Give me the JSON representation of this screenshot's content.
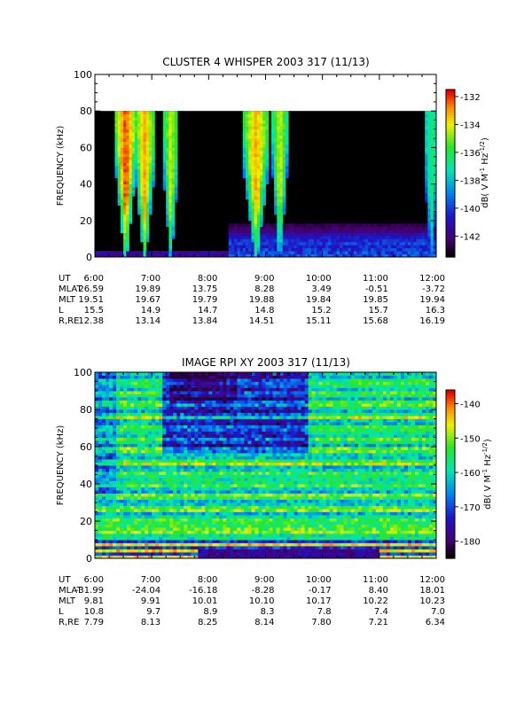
{
  "chart_data": [
    {
      "type": "heatmap",
      "title": "CLUSTER 4 WHISPER 2003 317 (11/13)",
      "ylabel": "FREQUENCY (kHz)",
      "ylim": [
        0,
        100
      ],
      "y_ticks": [
        "0",
        "20",
        "40",
        "60",
        "80",
        "100"
      ],
      "x_ticks": [
        "6:00",
        "7:00",
        "8:00",
        "9:00",
        "10:00",
        "11:00",
        "12:00"
      ],
      "data_max_frequency_khz": 80,
      "colorbar": {
        "label": "dB( V M",
        "label_sup1": "-1",
        "label_mid": " Hz",
        "label_sup2": "-1/2",
        "label_end": ")",
        "range": [
          -143.5,
          -131.5
        ],
        "ticks": [
          "-132",
          "-134",
          "-136",
          "-138",
          "-140",
          "-142"
        ]
      },
      "features": [
        {
          "t_start": "6:25",
          "t_end": "6:40",
          "f_top_khz": 80,
          "intensity_db": -133
        },
        {
          "t_start": "6:45",
          "t_end": "7:00",
          "f_top_khz": 80,
          "intensity_db": -134
        },
        {
          "t_start": "7:15",
          "t_end": "7:25",
          "f_top_khz": 80,
          "intensity_db": -135
        },
        {
          "t_start": "8:40",
          "t_end": "9:00",
          "f_top_khz": 80,
          "intensity_db": -134
        },
        {
          "t_start": "9:10",
          "t_end": "9:20",
          "f_top_khz": 80,
          "intensity_db": -135
        },
        {
          "t_start": "11:50",
          "t_end": "12:00",
          "f_top_khz": 80,
          "intensity_db": -137
        }
      ],
      "ephemeris": {
        "labels": [
          "UT",
          "MLAT",
          "MLT",
          "L",
          "R,RE"
        ],
        "rows": [
          [
            "6:00",
            "7:00",
            "8:00",
            "9:00",
            "10:00",
            "11:00",
            "12:00"
          ],
          [
            "26.59",
            "19.89",
            "13.75",
            "8.28",
            "3.49",
            "-0.51",
            "-3.72"
          ],
          [
            "19.51",
            "19.67",
            "19.79",
            "19.88",
            "19.84",
            "19.85",
            "19.94"
          ],
          [
            "15.5",
            "14.9",
            "14.7",
            "14.8",
            "15.2",
            "15.7",
            "16.3"
          ],
          [
            "12.38",
            "13.14",
            "13.84",
            "14.51",
            "15.11",
            "15.68",
            "16.19"
          ]
        ]
      }
    },
    {
      "type": "heatmap",
      "title": "IMAGE RPI XY 2003 317 (11/13)",
      "ylabel": "FREQUENCY (kHz)",
      "ylim": [
        0,
        100
      ],
      "y_ticks": [
        "0",
        "20",
        "40",
        "60",
        "80",
        "100"
      ],
      "x_ticks": [
        "6:00",
        "7:00",
        "8:00",
        "9:00",
        "10:00",
        "11:00",
        "12:00"
      ],
      "colorbar": {
        "label": "dB( V M",
        "label_sup1": "-1",
        "label_mid": " Hz",
        "label_sup2": "-1/2",
        "label_end": ")",
        "range": [
          -185,
          -136
        ],
        "ticks": [
          "-140",
          "-150",
          "-160",
          "-170",
          "-180"
        ]
      },
      "ephemeris": {
        "labels": [
          "UT",
          "MLAT",
          "MLT",
          "L",
          "R,RE"
        ],
        "rows": [
          [
            "6:00",
            "7:00",
            "8:00",
            "9:00",
            "10:00",
            "11:00",
            "12:00"
          ],
          [
            "-31.99",
            "-24.04",
            "-16.18",
            "-8.28",
            "-0.17",
            "8.40",
            "18.01"
          ],
          [
            "9.81",
            "9.91",
            "10.01",
            "10.10",
            "10.17",
            "10.22",
            "10.23"
          ],
          [
            "10.8",
            "9.7",
            "8.9",
            "8.3",
            "7.8",
            "7.4",
            "7.0"
          ],
          [
            "7.79",
            "8.13",
            "8.25",
            "8.14",
            "7.80",
            "7.21",
            "6.34"
          ]
        ]
      }
    }
  ]
}
